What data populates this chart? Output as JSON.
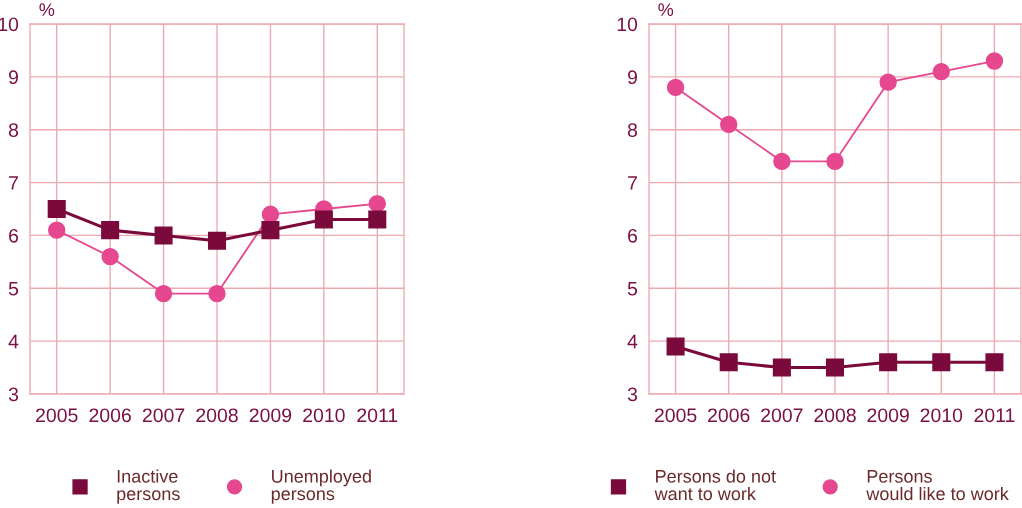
{
  "chart_data": [
    {
      "type": "line",
      "categories": [
        "2005",
        "2006",
        "2007",
        "2008",
        "2009",
        "2010",
        "2011"
      ],
      "ylabel": "%",
      "ylim": [
        3,
        10
      ],
      "yticks": [
        3,
        4,
        5,
        6,
        7,
        8,
        9,
        10
      ],
      "grid": true,
      "legend": "bottom",
      "series": [
        {
          "name": "Inactive\npersons",
          "color": "#7b0a3c",
          "marker": "square",
          "values": [
            6.5,
            6.1,
            6.0,
            5.9,
            6.1,
            6.3,
            6.3
          ]
        },
        {
          "name": "Unemployed\npersons",
          "color": "#e5488f",
          "marker": "circle",
          "values": [
            6.1,
            5.6,
            4.9,
            4.9,
            6.4,
            6.5,
            6.6
          ]
        }
      ]
    },
    {
      "type": "line",
      "categories": [
        "2005",
        "2006",
        "2007",
        "2008",
        "2009",
        "2010",
        "2011"
      ],
      "ylabel": "%",
      "ylim": [
        3,
        10
      ],
      "yticks": [
        3,
        4,
        5,
        6,
        7,
        8,
        9,
        10
      ],
      "grid": true,
      "legend": "bottom",
      "series": [
        {
          "name": "Persons do not\nwant to work",
          "color": "#7b0a3c",
          "marker": "square",
          "values": [
            3.9,
            3.6,
            3.5,
            3.5,
            3.6,
            3.6,
            3.6
          ]
        },
        {
          "name": "Persons\nwould like to work",
          "color": "#e5488f",
          "marker": "circle",
          "values": [
            8.8,
            8.1,
            7.4,
            7.4,
            8.9,
            9.1,
            9.3
          ]
        }
      ]
    }
  ]
}
